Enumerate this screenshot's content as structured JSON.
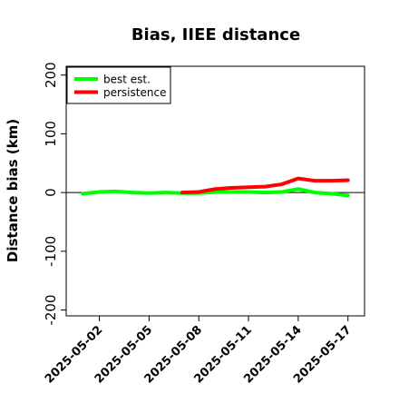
{
  "chart_data": {
    "type": "line",
    "title": "Bias, IIEE distance",
    "xlabel": "",
    "ylabel": "Distance bias (km)",
    "ylim": [
      -210,
      215
    ],
    "xlim": [
      "2025-04-30",
      "2025-05-18"
    ],
    "yticks": [
      -200,
      -100,
      0,
      100,
      200
    ],
    "xticks": [
      "2025-05-02",
      "2025-05-05",
      "2025-05-08",
      "2025-05-11",
      "2025-05-14",
      "2025-05-17"
    ],
    "grid": false,
    "legend_position": "top-left",
    "zero_line": true,
    "series": [
      {
        "name": "best est.",
        "color": "#00ff00",
        "x": [
          "2025-05-01",
          "2025-05-02",
          "2025-05-03",
          "2025-05-04",
          "2025-05-05",
          "2025-05-06",
          "2025-05-07",
          "2025-05-08",
          "2025-05-09",
          "2025-05-10",
          "2025-05-11",
          "2025-05-12",
          "2025-05-13",
          "2025-05-14",
          "2025-05-15",
          "2025-05-16",
          "2025-05-17"
        ],
        "y": [
          -2,
          1,
          2,
          0,
          -1,
          0,
          -1,
          -1,
          1,
          1,
          1,
          0,
          1,
          6,
          0,
          -2,
          -5
        ]
      },
      {
        "name": "persistence",
        "color": "#ff0000",
        "x": [
          "2025-05-07",
          "2025-05-08",
          "2025-05-09",
          "2025-05-10",
          "2025-05-11",
          "2025-05-12",
          "2025-05-13",
          "2025-05-14",
          "2025-05-15",
          "2025-05-16",
          "2025-05-17"
        ],
        "y": [
          0,
          1,
          6,
          8,
          9,
          10,
          14,
          24,
          20,
          20,
          21
        ]
      }
    ]
  }
}
